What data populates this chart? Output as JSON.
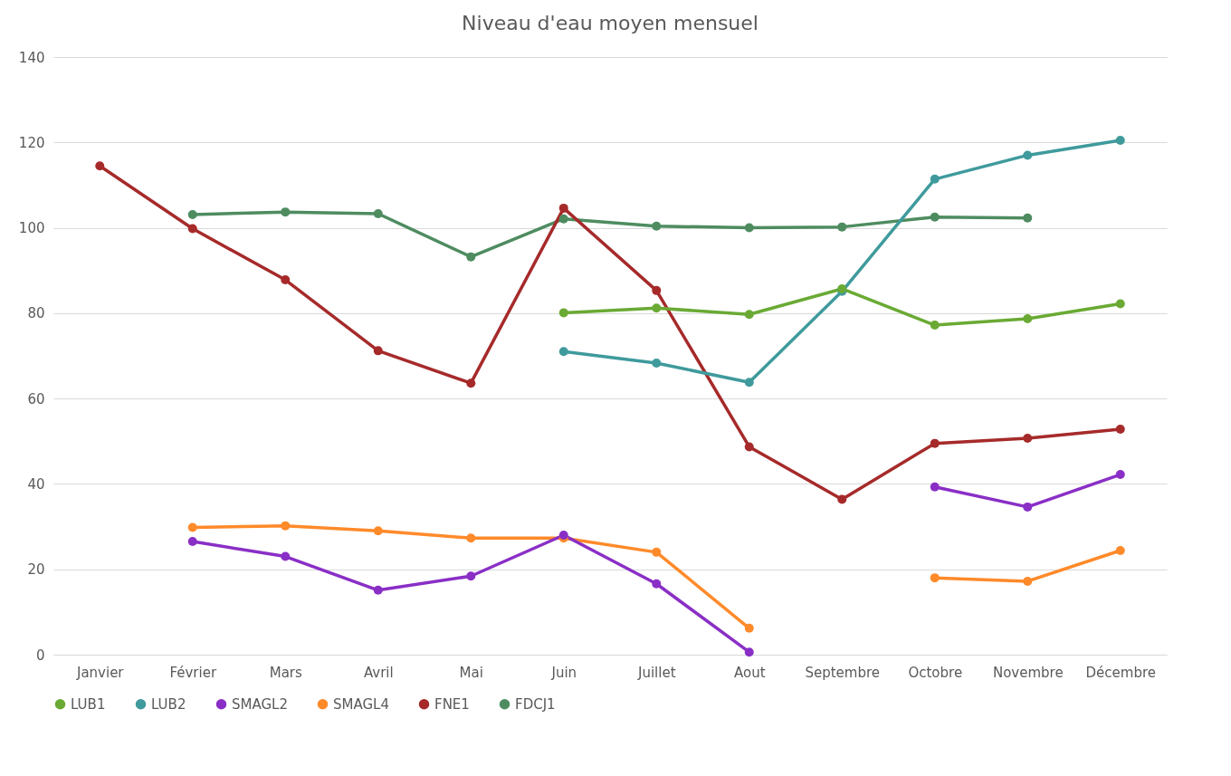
{
  "chart_data": {
    "type": "line",
    "title": "Niveau d'eau moyen mensuel",
    "categories": [
      "Janvier",
      "Février",
      "Mars",
      "Avril",
      "Mai",
      "Juin",
      "Juillet",
      "Aout",
      "Septembre",
      "Octobre",
      "Novembre",
      "Décembre"
    ],
    "series": [
      {
        "name": "LUB1",
        "color": "#6aaa34",
        "values": [
          null,
          null,
          null,
          null,
          null,
          80.1,
          81.2,
          79.7,
          85.7,
          77.2,
          78.7,
          82.2
        ]
      },
      {
        "name": "LUB2",
        "color": "#3f9a9c",
        "values": [
          null,
          null,
          null,
          null,
          null,
          71,
          68.3,
          63.8,
          85.1,
          111.4,
          117,
          120.5
        ]
      },
      {
        "name": "SMAGL2",
        "color": "#8a2fc6",
        "values": [
          null,
          26.5,
          23,
          15.1,
          18.4,
          28,
          16.6,
          0.6,
          null,
          39.3,
          34.6,
          42.2
        ]
      },
      {
        "name": "SMAGL4",
        "color": "#ff8a2a",
        "values": [
          null,
          29.8,
          30.2,
          29,
          27.3,
          27.3,
          24,
          6.2,
          null,
          18,
          17.2,
          24.4
        ]
      },
      {
        "name": "FNE1",
        "color": "#a62a2a",
        "values": [
          114.5,
          99.8,
          87.8,
          71.2,
          63.6,
          104.6,
          85.3,
          48.7,
          36.4,
          49.5,
          50.7,
          52.8
        ]
      },
      {
        "name": "FDCJ1",
        "color": "#4e8c60",
        "values": [
          null,
          103.1,
          103.7,
          103.3,
          93.2,
          102.1,
          100.4,
          100,
          100.2,
          102.5,
          102.3,
          null
        ]
      }
    ],
    "ylim": [
      0,
      140
    ],
    "yticks": [
      0,
      20,
      40,
      60,
      80,
      100,
      120,
      140
    ],
    "grid": "y",
    "legend": "bottom",
    "marker": "circle",
    "line_style": "solid"
  }
}
